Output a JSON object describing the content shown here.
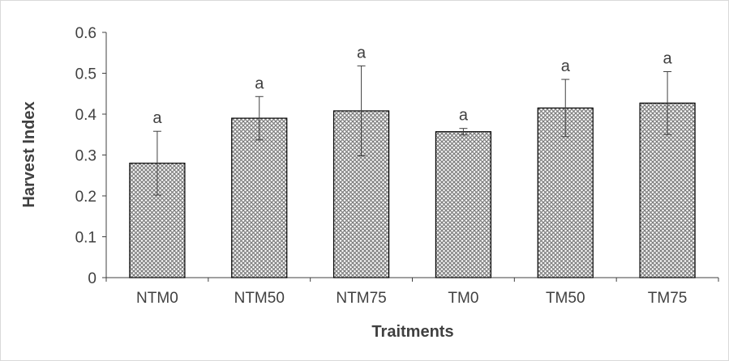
{
  "chart_data": {
    "type": "bar",
    "title": "",
    "xlabel": "Traitments",
    "ylabel": "Harvest Index",
    "categories": [
      "NTM0",
      "NTM50",
      "NTM75",
      "TM0",
      "TM50",
      "TM75"
    ],
    "values": [
      0.28,
      0.39,
      0.408,
      0.357,
      0.415,
      0.427
    ],
    "error": [
      0.078,
      0.053,
      0.11,
      0.008,
      0.07,
      0.077
    ],
    "annotations": [
      "a",
      "a",
      "a",
      "a",
      "a",
      "a"
    ],
    "ylim": [
      0,
      0.6
    ],
    "yticks": [
      0,
      0.1,
      0.2,
      0.3,
      0.4,
      0.5,
      0.6
    ],
    "ytick_labels": [
      "0",
      "0.1",
      "0.2",
      "0.3",
      "0.4",
      "0.5",
      "0.6"
    ],
    "grid": false,
    "legend": "none",
    "bar_fill": "crosshatch pattern",
    "colors": {
      "bar_pattern": "#808080",
      "bar_outline": "#000000",
      "axis": "#404040",
      "text": "#404040"
    }
  }
}
